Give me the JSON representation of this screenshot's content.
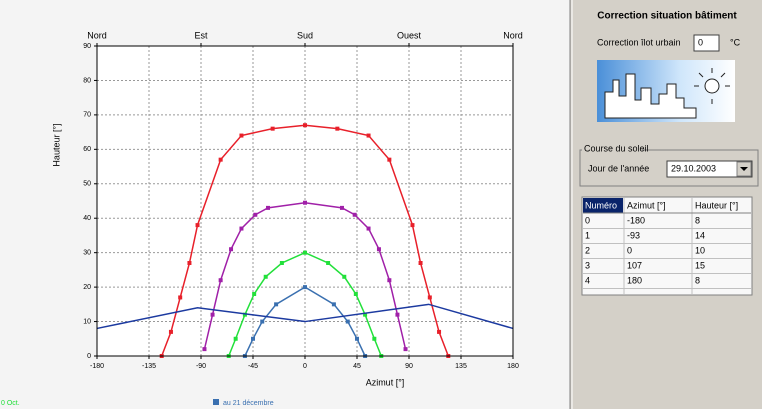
{
  "chart_data": {
    "type": "line",
    "xlabel": "Azimut [°]",
    "ylabel": "Hauteur [°]",
    "xlim": [
      -180,
      180
    ],
    "ylim": [
      0,
      90
    ],
    "xticks": [
      -180,
      -135,
      -90,
      -45,
      0,
      45,
      90,
      135,
      180
    ],
    "yticks": [
      0,
      10,
      20,
      30,
      40,
      50,
      60,
      70,
      80,
      90
    ],
    "top_ticks": [
      {
        "value": -180,
        "label": "Nord"
      },
      {
        "value": -90,
        "label": "Est"
      },
      {
        "value": 0,
        "label": "Sud"
      },
      {
        "value": 90,
        "label": "Ouest"
      },
      {
        "value": 180,
        "label": "Nord"
      }
    ],
    "grid": true,
    "series": [
      {
        "color": "#e8202a",
        "markers": true,
        "x": [
          -124,
          -116,
          -108,
          -100,
          -93,
          -73,
          -55,
          -28,
          0,
          28,
          55,
          73,
          93,
          100,
          108,
          116,
          124
        ],
        "values": [
          0,
          7,
          17,
          27,
          38,
          57,
          64,
          66,
          67,
          66,
          64,
          57,
          38,
          27,
          17,
          7,
          0
        ]
      },
      {
        "color": "#a020a8",
        "markers": true,
        "x": [
          -87,
          -80,
          -73,
          -64,
          -55,
          -43,
          -32,
          0,
          32,
          43,
          55,
          64,
          73,
          80,
          87
        ],
        "values": [
          2,
          12,
          22,
          31,
          37,
          41,
          43,
          44.5,
          43,
          41,
          37,
          31,
          22,
          12,
          2
        ]
      },
      {
        "name": "0 Oct.",
        "color": "#22e03a",
        "markers": true,
        "x": [
          -66,
          -60,
          -52,
          -44,
          -34,
          -20,
          0,
          20,
          34,
          44,
          52,
          60,
          66
        ],
        "values": [
          0,
          5,
          12,
          18,
          23,
          27,
          30,
          27,
          23,
          18,
          12,
          5,
          0
        ]
      },
      {
        "name": "au 21 décembre",
        "color": "#3a70b0",
        "markers": true,
        "x": [
          -52,
          -45,
          -37,
          -25,
          0,
          25,
          37,
          45,
          52
        ],
        "values": [
          0,
          5,
          10,
          15,
          20,
          15,
          10,
          5,
          0
        ]
      },
      {
        "color": "#1c3aa0",
        "markers": false,
        "x": [
          -180,
          -93,
          0,
          107,
          180
        ],
        "values": [
          8,
          14,
          10,
          15,
          8
        ]
      }
    ]
  },
  "panel": {
    "title": "Correction situation bâtiment",
    "urban_label": "Correction îlot urbain",
    "urban_value": 0,
    "urban_unit": "°C",
    "sun_group": "Course du soleil",
    "day_label": "Jour de l'année",
    "day_value": "29.10.2003",
    "table": {
      "columns": [
        "Numéro",
        "Azimut [°]",
        "Hauteur [°]"
      ],
      "ids": [
        0,
        1,
        2,
        3,
        4
      ]
    }
  }
}
